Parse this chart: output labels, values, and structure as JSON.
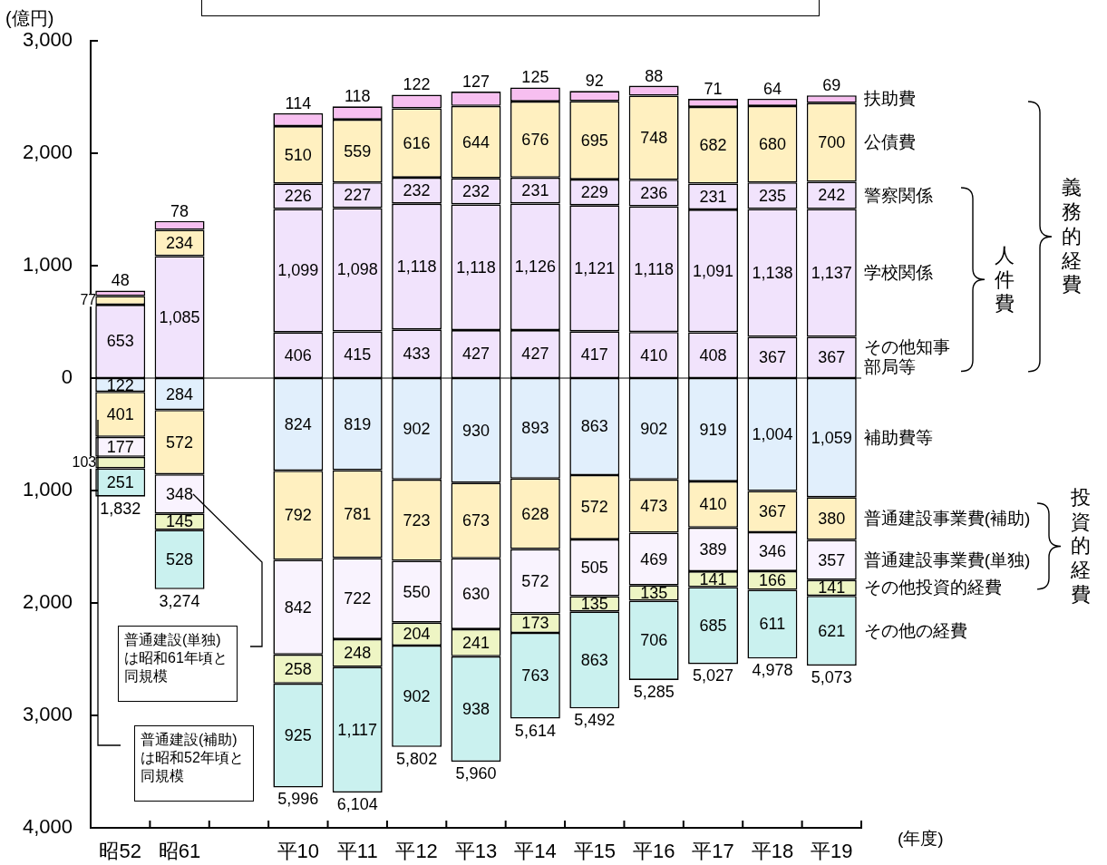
{
  "chart_data": {
    "type": "bar",
    "ylabel": "(億円)",
    "xlabel": "(年度)",
    "categories": [
      "昭52",
      "昭61",
      null,
      "平10",
      "平11",
      "平12",
      "平13",
      "平14",
      "平15",
      "平16",
      "平17",
      "平18",
      "平19"
    ],
    "ylim": [
      -4000,
      3000
    ],
    "yticks": [
      {
        "value": -4000,
        "label": "4,000"
      },
      {
        "value": -3000,
        "label": "3,000"
      },
      {
        "value": -2000,
        "label": "2,000"
      },
      {
        "value": -1000,
        "label": "1,000"
      },
      0,
      {
        "value": 1000,
        "label": "1,000"
      },
      {
        "value": 2000,
        "label": "2,000"
      },
      {
        "value": 3000,
        "label": "3,000"
      }
    ],
    "series": [
      {
        "color": "#f1e3fc",
        "values": [
          653,
          1085,
          null,
          null,
          null,
          null,
          null,
          null,
          null,
          null,
          null,
          null,
          null
        ],
        "base": [
          0,
          0,
          null,
          null,
          null,
          null,
          null,
          null,
          null,
          null,
          null,
          null,
          null
        ],
        "value_labels": [
          "653",
          "1,085",
          null,
          null,
          null,
          null,
          null,
          null,
          null,
          null,
          null,
          null,
          null
        ]
      },
      {
        "name": "その他知事部局等",
        "color": "#f1e3fc",
        "values": [
          null,
          null,
          null,
          406,
          415,
          433,
          427,
          427,
          417,
          410,
          408,
          367,
          367
        ],
        "base": [
          null,
          null,
          null,
          0,
          0,
          0,
          0,
          0,
          0,
          0,
          0,
          0,
          0
        ],
        "value_labels": [
          null,
          null,
          null,
          "406",
          "415",
          "433",
          "427",
          "427",
          "417",
          "410",
          "408",
          "367",
          "367"
        ]
      },
      {
        "name": "学校関係",
        "color": "#f1e3fc",
        "values": [
          null,
          null,
          null,
          1099,
          1098,
          1118,
          1118,
          1126,
          1121,
          1118,
          1091,
          1138,
          1137
        ],
        "base": [
          null,
          null,
          null,
          406,
          415,
          433,
          427,
          427,
          417,
          410,
          408,
          367,
          367
        ],
        "value_labels": [
          null,
          null,
          null,
          "1,099",
          "1,098",
          "1,118",
          "1,118",
          "1,126",
          "1,121",
          "1,118",
          "1,091",
          "1,138",
          "1,137"
        ]
      },
      {
        "name": "警察関係",
        "color": "#f1e3fc",
        "values": [
          null,
          null,
          null,
          226,
          227,
          232,
          232,
          231,
          229,
          236,
          231,
          235,
          242
        ],
        "base": [
          null,
          null,
          null,
          1505,
          1513,
          1551,
          1545,
          1553,
          1538,
          1528,
          1499,
          1505,
          1504
        ],
        "value_labels": [
          null,
          null,
          null,
          "226",
          "227",
          "232",
          "232",
          "231",
          "229",
          "236",
          "231",
          "235",
          "242"
        ]
      },
      {
        "name": "公債費",
        "color": "#fff0c0",
        "values": [
          77,
          234,
          null,
          510,
          559,
          616,
          644,
          676,
          695,
          748,
          682,
          680,
          700
        ],
        "base": [
          653,
          1085,
          null,
          1731,
          1740,
          1783,
          1777,
          1784,
          1767,
          1764,
          1730,
          1740,
          1746
        ],
        "value_labels": [
          "77",
          "234",
          null,
          "510",
          "559",
          "616",
          "644",
          "676",
          "695",
          "748",
          "682",
          "680",
          "700"
        ]
      },
      {
        "name": "扶助費",
        "color": "#f7bff0",
        "values": [
          48,
          78,
          null,
          114,
          118,
          122,
          127,
          125,
          92,
          88,
          71,
          64,
          69
        ],
        "base": [
          730,
          1319,
          null,
          2241,
          2299,
          2399,
          2421,
          2460,
          2462,
          2512,
          2412,
          2420,
          2446
        ],
        "value_labels": [
          "48",
          "78",
          null,
          "114",
          "118",
          "122",
          "127",
          "125",
          "92",
          "88",
          "71",
          "64",
          "69"
        ]
      },
      {
        "name": "補助費等",
        "color": "#e1effc",
        "values": [
          122,
          284,
          null,
          824,
          819,
          902,
          930,
          893,
          863,
          902,
          919,
          1004,
          1059
        ],
        "base": [
          -122,
          -284,
          null,
          -824,
          -819,
          -902,
          -930,
          -893,
          -863,
          -902,
          -919,
          -1004,
          -1059
        ],
        "value_labels": [
          "122",
          "284",
          null,
          "824",
          "819",
          "902",
          "930",
          "893",
          "863",
          "902",
          "919",
          "1,004",
          "1,059"
        ]
      },
      {
        "name": "普通建設事業費(補助)",
        "color": "#fff0c0",
        "values": [
          401,
          572,
          null,
          792,
          781,
          723,
          673,
          628,
          572,
          473,
          410,
          367,
          380
        ],
        "base": [
          -523,
          -856,
          null,
          -1616,
          -1600,
          -1625,
          -1603,
          -1521,
          -1435,
          -1375,
          -1329,
          -1371,
          -1439
        ],
        "value_labels": [
          "401",
          "572",
          null,
          "792",
          "781",
          "723",
          "673",
          "628",
          "572",
          "473",
          "410",
          "367",
          "380"
        ]
      },
      {
        "name": "普通建設事業費(単独)",
        "color": "#f9f3fe",
        "values": [
          177,
          348,
          null,
          842,
          722,
          550,
          630,
          572,
          505,
          469,
          389,
          346,
          357
        ],
        "base": [
          -700,
          -1204,
          null,
          -2458,
          -2322,
          -2175,
          -2233,
          -2093,
          -1940,
          -1844,
          -1718,
          -1717,
          -1796
        ],
        "value_labels": [
          "177",
          "348",
          null,
          "842",
          "722",
          "550",
          "630",
          "572",
          "505",
          "469",
          "389",
          "346",
          "357"
        ]
      },
      {
        "name": "その他投資的経費",
        "color": "#eef5c4",
        "values": [
          103,
          145,
          null,
          258,
          248,
          204,
          241,
          173,
          135,
          135,
          141,
          166,
          141
        ],
        "base": [
          -803,
          -1349,
          null,
          -2716,
          -2570,
          -2379,
          -2474,
          -2266,
          -2075,
          -1979,
          -1859,
          -1883,
          -1937
        ],
        "value_labels": [
          "103",
          "145",
          null,
          "258",
          "248",
          "204",
          "241",
          "173",
          "135",
          "135",
          "141",
          "166",
          "141"
        ]
      },
      {
        "name": "その他の経費",
        "color": "#caf1ef",
        "values": [
          251,
          528,
          null,
          925,
          1117,
          902,
          938,
          763,
          863,
          706,
          685,
          611,
          621
        ],
        "base": [
          -1054,
          -1877,
          null,
          -3641,
          -3687,
          -3281,
          -3412,
          -3029,
          -2938,
          -2685,
          -2544,
          -2494,
          -2558
        ],
        "value_labels": [
          "251",
          "528",
          null,
          "925",
          "1,117",
          "902",
          "938",
          "763",
          "863",
          "706",
          "685",
          "611",
          "621"
        ]
      }
    ],
    "totals": [
      "1,832",
      "3,274",
      null,
      "5,996",
      "6,104",
      "5,802",
      "5,960",
      "5,614",
      "5,492",
      "5,285",
      "5,027",
      "4,978",
      "5,073"
    ],
    "ref_lines": [
      {
        "axis": "y",
        "value": 0
      }
    ],
    "annotations": [
      "人件費",
      "義務的経費",
      "投資的経費",
      "普通建設(単独)は昭和61年頃と同規模",
      "普通建設(補助)は昭和52年頃と同規模"
    ]
  }
}
